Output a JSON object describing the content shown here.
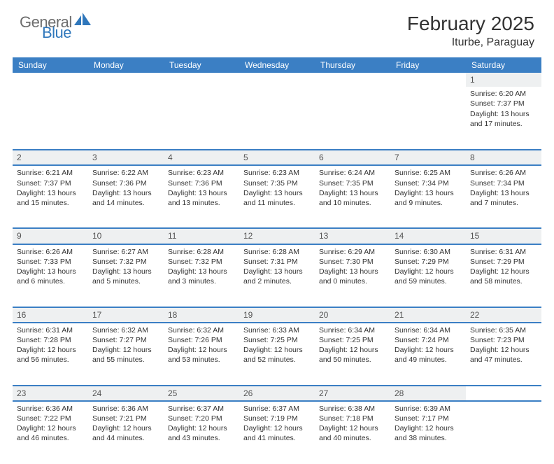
{
  "brand": {
    "word1": "General",
    "word2": "Blue",
    "icon_color": "#2f77bb",
    "text_gray": "#6d6d6d"
  },
  "title": "February 2025",
  "location": "Iturbe, Paraguay",
  "colors": {
    "header_bg": "#3b7fc4",
    "daynum_bg": "#eef0f1",
    "rule": "#3b7fc4",
    "text": "#333333"
  },
  "day_headers": [
    "Sunday",
    "Monday",
    "Tuesday",
    "Wednesday",
    "Thursday",
    "Friday",
    "Saturday"
  ],
  "weeks": [
    [
      null,
      null,
      null,
      null,
      null,
      null,
      {
        "n": "1",
        "sr": "6:20 AM",
        "ss": "7:37 PM",
        "dl": "13 hours and 17 minutes."
      }
    ],
    [
      {
        "n": "2",
        "sr": "6:21 AM",
        "ss": "7:37 PM",
        "dl": "13 hours and 15 minutes."
      },
      {
        "n": "3",
        "sr": "6:22 AM",
        "ss": "7:36 PM",
        "dl": "13 hours and 14 minutes."
      },
      {
        "n": "4",
        "sr": "6:23 AM",
        "ss": "7:36 PM",
        "dl": "13 hours and 13 minutes."
      },
      {
        "n": "5",
        "sr": "6:23 AM",
        "ss": "7:35 PM",
        "dl": "13 hours and 11 minutes."
      },
      {
        "n": "6",
        "sr": "6:24 AM",
        "ss": "7:35 PM",
        "dl": "13 hours and 10 minutes."
      },
      {
        "n": "7",
        "sr": "6:25 AM",
        "ss": "7:34 PM",
        "dl": "13 hours and 9 minutes."
      },
      {
        "n": "8",
        "sr": "6:26 AM",
        "ss": "7:34 PM",
        "dl": "13 hours and 7 minutes."
      }
    ],
    [
      {
        "n": "9",
        "sr": "6:26 AM",
        "ss": "7:33 PM",
        "dl": "13 hours and 6 minutes."
      },
      {
        "n": "10",
        "sr": "6:27 AM",
        "ss": "7:32 PM",
        "dl": "13 hours and 5 minutes."
      },
      {
        "n": "11",
        "sr": "6:28 AM",
        "ss": "7:32 PM",
        "dl": "13 hours and 3 minutes."
      },
      {
        "n": "12",
        "sr": "6:28 AM",
        "ss": "7:31 PM",
        "dl": "13 hours and 2 minutes."
      },
      {
        "n": "13",
        "sr": "6:29 AM",
        "ss": "7:30 PM",
        "dl": "13 hours and 0 minutes."
      },
      {
        "n": "14",
        "sr": "6:30 AM",
        "ss": "7:29 PM",
        "dl": "12 hours and 59 minutes."
      },
      {
        "n": "15",
        "sr": "6:31 AM",
        "ss": "7:29 PM",
        "dl": "12 hours and 58 minutes."
      }
    ],
    [
      {
        "n": "16",
        "sr": "6:31 AM",
        "ss": "7:28 PM",
        "dl": "12 hours and 56 minutes."
      },
      {
        "n": "17",
        "sr": "6:32 AM",
        "ss": "7:27 PM",
        "dl": "12 hours and 55 minutes."
      },
      {
        "n": "18",
        "sr": "6:32 AM",
        "ss": "7:26 PM",
        "dl": "12 hours and 53 minutes."
      },
      {
        "n": "19",
        "sr": "6:33 AM",
        "ss": "7:25 PM",
        "dl": "12 hours and 52 minutes."
      },
      {
        "n": "20",
        "sr": "6:34 AM",
        "ss": "7:25 PM",
        "dl": "12 hours and 50 minutes."
      },
      {
        "n": "21",
        "sr": "6:34 AM",
        "ss": "7:24 PM",
        "dl": "12 hours and 49 minutes."
      },
      {
        "n": "22",
        "sr": "6:35 AM",
        "ss": "7:23 PM",
        "dl": "12 hours and 47 minutes."
      }
    ],
    [
      {
        "n": "23",
        "sr": "6:36 AM",
        "ss": "7:22 PM",
        "dl": "12 hours and 46 minutes."
      },
      {
        "n": "24",
        "sr": "6:36 AM",
        "ss": "7:21 PM",
        "dl": "12 hours and 44 minutes."
      },
      {
        "n": "25",
        "sr": "6:37 AM",
        "ss": "7:20 PM",
        "dl": "12 hours and 43 minutes."
      },
      {
        "n": "26",
        "sr": "6:37 AM",
        "ss": "7:19 PM",
        "dl": "12 hours and 41 minutes."
      },
      {
        "n": "27",
        "sr": "6:38 AM",
        "ss": "7:18 PM",
        "dl": "12 hours and 40 minutes."
      },
      {
        "n": "28",
        "sr": "6:39 AM",
        "ss": "7:17 PM",
        "dl": "12 hours and 38 minutes."
      },
      null
    ]
  ],
  "labels": {
    "sunrise": "Sunrise:",
    "sunset": "Sunset:",
    "daylight": "Daylight:"
  }
}
